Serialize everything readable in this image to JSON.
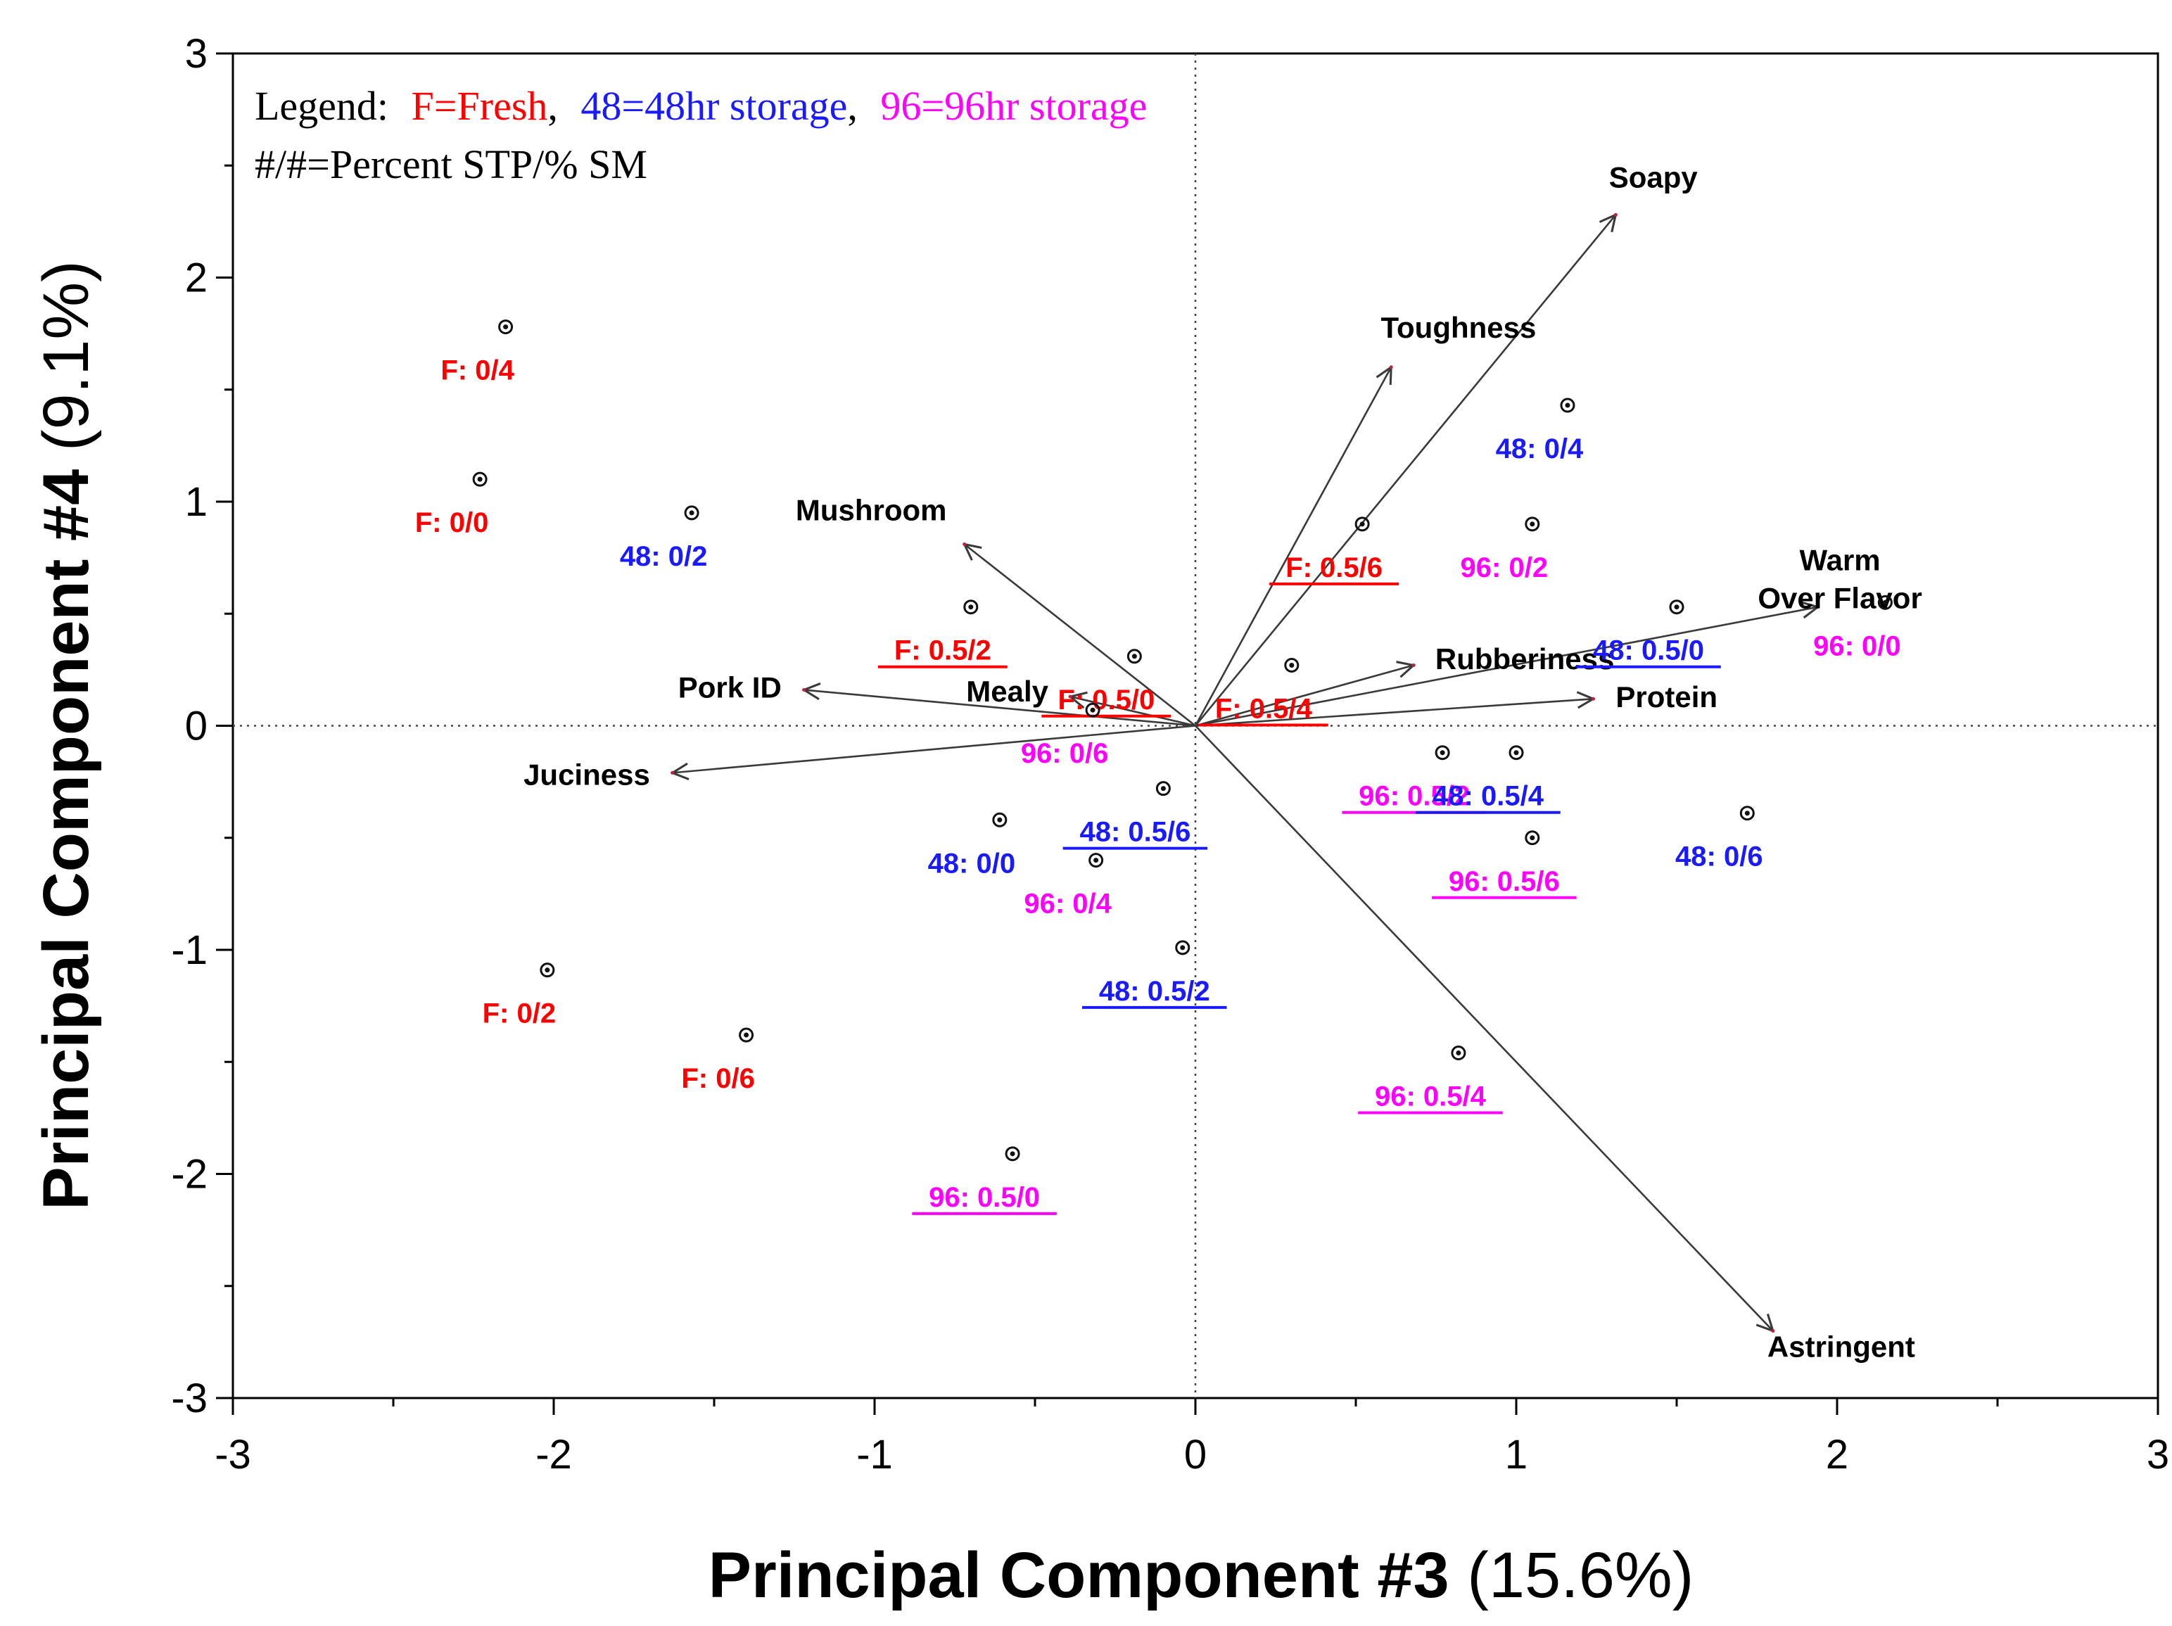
{
  "chart_data": {
    "type": "scatter",
    "subtype": "pca-biplot",
    "xlabel": "Principal Component #3",
    "xlabel_pct": "(15.6%)",
    "ylabel": "Principal Component #4",
    "ylabel_pct": "(9.1%)",
    "xlim": [
      -3,
      3
    ],
    "ylim": [
      -3,
      3
    ],
    "xticks": [
      -3,
      -2,
      -1,
      0,
      1,
      2,
      3
    ],
    "yticks": [
      -3,
      -2,
      -1,
      0,
      1,
      2,
      3
    ],
    "xtick_labels": [
      "-3",
      "-2",
      "-1",
      "0",
      "1",
      "2",
      "3"
    ],
    "ytick_labels": [
      "-3",
      "-2",
      "-1",
      "0",
      "1",
      "2",
      "3"
    ],
    "legend": {
      "prefix": "Legend:",
      "entries": [
        {
          "text": "F=Fresh",
          "color": "#ff0000",
          "suffix": ","
        },
        {
          "text": "48=48hr storage",
          "color": "#1a1aff",
          "suffix": ","
        },
        {
          "text": "96=96hr storage",
          "color": "#ff00ff",
          "suffix": ""
        }
      ],
      "note": "#/#=Percent STP/% SM"
    },
    "colors": {
      "F": "#ff0000",
      "48": "#1a1aff",
      "96": "#ff00ff"
    },
    "vectors": [
      {
        "name": "Soapy",
        "x": 1.31,
        "y": 2.28
      },
      {
        "name": "Toughness",
        "x": 0.61,
        "y": 1.6
      },
      {
        "name": "Mushroom",
        "x": -0.72,
        "y": 0.81
      },
      {
        "name": "Warm Over Flavor",
        "x": 1.94,
        "y": 0.53
      },
      {
        "name": "Rubberiness",
        "x": 0.68,
        "y": 0.27
      },
      {
        "name": "Protein",
        "x": 1.24,
        "y": 0.12
      },
      {
        "name": "Mealy",
        "x": -0.39,
        "y": 0.13
      },
      {
        "name": "Pork ID",
        "x": -1.22,
        "y": 0.16
      },
      {
        "name": "Juciness",
        "x": -1.63,
        "y": -0.21
      },
      {
        "name": "Astringent",
        "x": 1.8,
        "y": -2.7
      }
    ],
    "points": [
      {
        "label": "F: 0/4",
        "group": "F",
        "x": -2.15,
        "y": 1.78,
        "underline": false
      },
      {
        "label": "F: 0/0",
        "group": "F",
        "x": -2.23,
        "y": 1.1,
        "underline": false
      },
      {
        "label": "48: 0/2",
        "group": "48",
        "x": -1.57,
        "y": 0.95,
        "underline": false
      },
      {
        "label": "F: 0.5/2",
        "group": "F",
        "x": -0.7,
        "y": 0.53,
        "underline": true
      },
      {
        "label": "F: 0.5/0",
        "group": "F",
        "x": -0.19,
        "y": 0.31,
        "underline": true
      },
      {
        "label": "F: 0.5/4",
        "group": "F",
        "x": 0.3,
        "y": 0.27,
        "underline": true
      },
      {
        "label": "F: 0.5/6",
        "group": "F",
        "x": 0.52,
        "y": 0.9,
        "underline": true
      },
      {
        "label": "96: 0/6",
        "group": "96",
        "x": -0.32,
        "y": 0.07,
        "underline": false
      },
      {
        "label": "48: 0/4",
        "group": "48",
        "x": 1.16,
        "y": 1.43,
        "underline": false
      },
      {
        "label": "96: 0/2",
        "group": "96",
        "x": 1.05,
        "y": 0.9,
        "underline": false
      },
      {
        "label": "48: 0.5/0",
        "group": "48",
        "x": 1.5,
        "y": 0.53,
        "underline": true
      },
      {
        "label": "96: 0/0",
        "group": "96",
        "x": 2.15,
        "y": 0.55,
        "underline": false
      },
      {
        "label": "96: 0.5/2",
        "group": "96",
        "x": 0.77,
        "y": -0.12,
        "underline": true
      },
      {
        "label": "48: 0.5/4",
        "group": "48",
        "x": 1.0,
        "y": -0.12,
        "underline": true
      },
      {
        "label": "48: 0/6",
        "group": "48",
        "x": 1.72,
        "y": -0.39,
        "underline": false
      },
      {
        "label": "96: 0.5/6",
        "group": "96",
        "x": 1.05,
        "y": -0.5,
        "underline": true
      },
      {
        "label": "48: 0.5/6",
        "group": "48",
        "x": -0.1,
        "y": -0.28,
        "underline": true
      },
      {
        "label": "48: 0/0",
        "group": "48",
        "x": -0.61,
        "y": -0.42,
        "underline": false
      },
      {
        "label": "96: 0/4",
        "group": "96",
        "x": -0.31,
        "y": -0.6,
        "underline": false
      },
      {
        "label": "48: 0.5/2",
        "group": "48",
        "x": -0.04,
        "y": -0.99,
        "underline": true
      },
      {
        "label": "96: 0.5/4",
        "group": "96",
        "x": 0.82,
        "y": -1.46,
        "underline": true
      },
      {
        "label": "F: 0/2",
        "group": "F",
        "x": -2.02,
        "y": -1.09,
        "underline": false
      },
      {
        "label": "F: 0/6",
        "group": "F",
        "x": -1.4,
        "y": -1.38,
        "underline": false
      },
      {
        "label": "96: 0.5/0",
        "group": "96",
        "x": -0.57,
        "y": -1.91,
        "underline": true
      }
    ]
  }
}
